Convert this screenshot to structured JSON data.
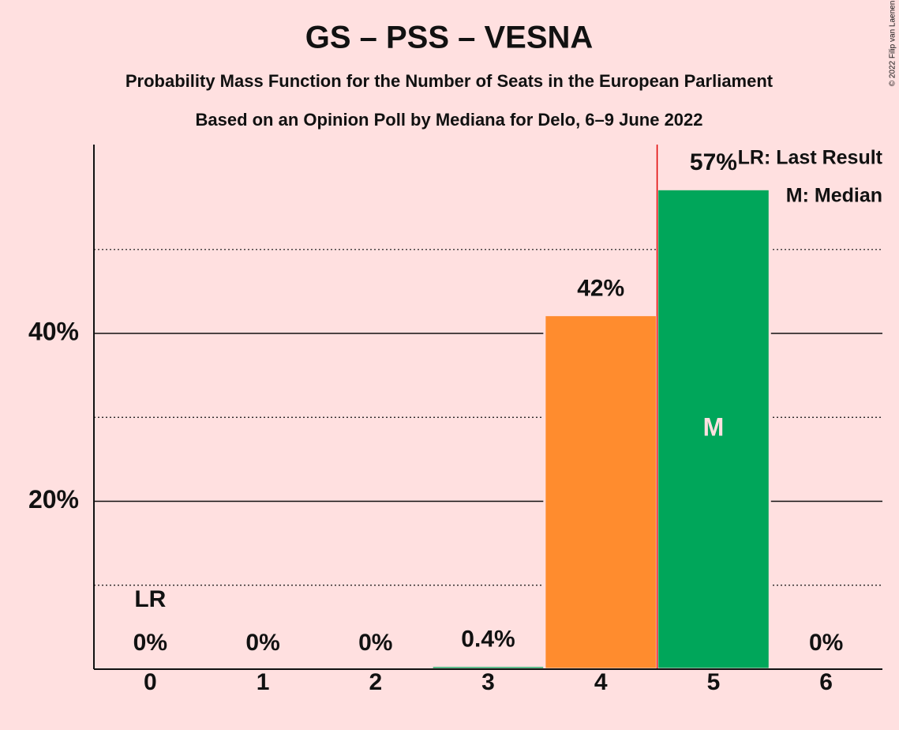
{
  "chart_data": {
    "type": "bar",
    "title": "GS – PSS – VESNA",
    "subtitle": "Probability Mass Function for the Number of Seats in the European Parliament",
    "subtitle2": "Based on an Opinion Poll by Mediana for Delo, 6–9 June 2022",
    "copyright": "© 2022 Filip van Laenen",
    "categories": [
      "0",
      "1",
      "2",
      "3",
      "4",
      "5",
      "6"
    ],
    "values": [
      0,
      0,
      0,
      0.4,
      42.2,
      57.2,
      0
    ],
    "value_labels": [
      "0%",
      "0%",
      "0%",
      "0.4%",
      "42%",
      "57%",
      "0%"
    ],
    "colors": [
      "#00a65a",
      "#00a65a",
      "#00a65a",
      "#00a65a",
      "#ff8c2e",
      "#00a65a",
      "#00a65a"
    ],
    "ylim": [
      0,
      62.5
    ],
    "yticks": [
      {
        "value": 20,
        "label": "20%"
      },
      {
        "value": 40,
        "label": "40%"
      }
    ],
    "minor_yticks": [
      10,
      30,
      50
    ],
    "grid": true,
    "last_result": {
      "category": 0,
      "label": "LR"
    },
    "median": {
      "category": 5,
      "label": "M"
    },
    "threshold_line": {
      "x": 4.5,
      "color": "#e00000"
    },
    "legend": [
      "LR: Last Result",
      "M: Median"
    ],
    "legend_position": "upper right"
  }
}
